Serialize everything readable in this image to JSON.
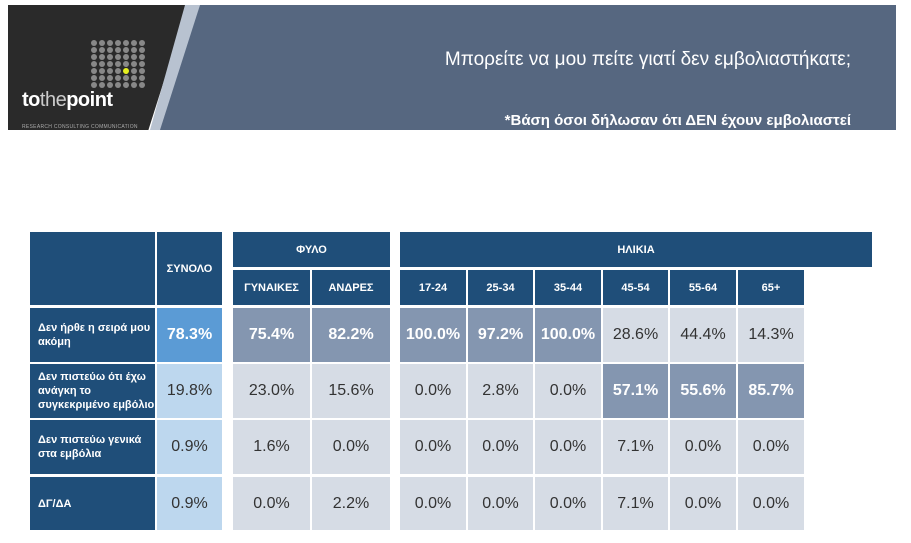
{
  "header": {
    "brand": "tothepoint",
    "brand_parts": [
      "to",
      "the",
      "point"
    ],
    "tagline": "RESEARCH CONSULTING COMMUNICATION",
    "title": "Μπορείτε να μου πείτε γιατί δεν εμβολιαστήκατε;",
    "subtitle": "*Βάση όσοι δήλωσαν ότι ΔΕΝ έχουν εμβολιαστεί"
  },
  "table": {
    "groups": {
      "total": "ΣΥΝΟΛΟ",
      "gender": "ΦΥΛΟ",
      "age": "ΗΛΙΚΙΑ"
    },
    "columns": [
      "ΓΥΝΑΙΚΕΣ",
      "ΑΝΔΡΕΣ",
      "17-24",
      "25-34",
      "35-44",
      "45-54",
      "55-64",
      "65+"
    ],
    "rows": [
      {
        "label": "Δεν ήρθε η σειρά μου ακόμη",
        "values": [
          "78.3%",
          "75.4%",
          "82.2%",
          "100.0%",
          "97.2%",
          "100.0%",
          "28.6%",
          "44.4%",
          "14.3%"
        ],
        "highlight": [
          1,
          1,
          1,
          1,
          1,
          1,
          0,
          0,
          0
        ]
      },
      {
        "label": "Δεν πιστεύω ότι έχω ανάγκη το συγκεκριμένο εμβόλιο",
        "values": [
          "19.8%",
          "23.0%",
          "15.6%",
          "0.0%",
          "2.8%",
          "0.0%",
          "57.1%",
          "55.6%",
          "85.7%"
        ],
        "highlight": [
          0,
          0,
          0,
          0,
          0,
          0,
          1,
          1,
          1
        ]
      },
      {
        "label": "Δεν πιστεύω γενικά στα εμβόλια",
        "values": [
          "0.9%",
          "1.6%",
          "0.0%",
          "0.0%",
          "0.0%",
          "0.0%",
          "7.1%",
          "0.0%",
          "0.0%"
        ],
        "highlight": [
          0,
          0,
          0,
          0,
          0,
          0,
          0,
          0,
          0
        ]
      },
      {
        "label": "ΔΓ/ΔΑ",
        "values": [
          "0.9%",
          "0.0%",
          "2.2%",
          "0.0%",
          "0.0%",
          "0.0%",
          "7.1%",
          "0.0%",
          "0.0%"
        ],
        "highlight": [
          0,
          0,
          0,
          0,
          0,
          0,
          0,
          0,
          0
        ]
      }
    ]
  }
}
